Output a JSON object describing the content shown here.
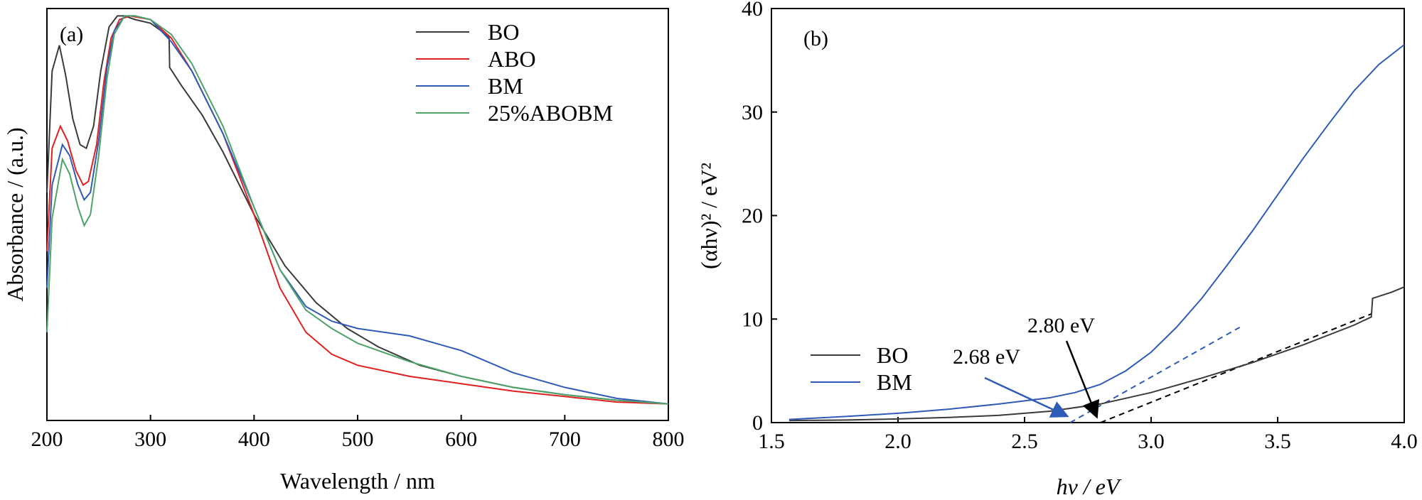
{
  "chart_data": [
    {
      "panel_label": "(a)",
      "type": "line",
      "xlabel": "Wavelength / nm",
      "ylabel": "Absorbance / (a.u.)",
      "xlim": [
        200,
        800
      ],
      "ylim": [
        0,
        1.12
      ],
      "xticks": [
        200,
        300,
        400,
        500,
        600,
        700,
        800
      ],
      "yticks_shown": false,
      "legend_position": "top-right",
      "series": [
        {
          "name": "BO",
          "color": "#3a3a3a",
          "x": [
            200,
            205,
            212,
            218,
            225,
            232,
            238,
            245,
            252,
            260,
            268,
            275,
            285,
            300,
            310,
            318,
            318.5,
            330,
            350,
            370,
            400,
            430,
            460,
            490,
            520,
            560,
            600,
            650,
            700,
            750,
            800
          ],
          "y": [
            0.62,
            0.95,
            1.02,
            0.94,
            0.82,
            0.75,
            0.74,
            0.8,
            0.95,
            1.07,
            1.1,
            1.1,
            1.09,
            1.08,
            1.06,
            1.04,
            0.96,
            0.91,
            0.83,
            0.73,
            0.56,
            0.42,
            0.32,
            0.25,
            0.2,
            0.15,
            0.12,
            0.09,
            0.07,
            0.055,
            0.045
          ]
        },
        {
          "name": "ABO",
          "color": "#e02020",
          "x": [
            200,
            205,
            213,
            220,
            228,
            235,
            240,
            248,
            255,
            262,
            270,
            280,
            300,
            320,
            340,
            370,
            400,
            425,
            450,
            475,
            500,
            550,
            600,
            650,
            700,
            750,
            800
          ],
          "y": [
            0.46,
            0.74,
            0.8,
            0.76,
            0.68,
            0.64,
            0.65,
            0.75,
            0.92,
            1.04,
            1.09,
            1.1,
            1.09,
            1.04,
            0.95,
            0.78,
            0.56,
            0.36,
            0.24,
            0.18,
            0.15,
            0.12,
            0.1,
            0.08,
            0.065,
            0.05,
            0.045
          ]
        },
        {
          "name": "BM",
          "color": "#2f5bb8",
          "x": [
            200,
            205,
            215,
            222,
            230,
            236,
            242,
            250,
            258,
            265,
            275,
            285,
            300,
            320,
            340,
            370,
            400,
            425,
            450,
            475,
            500,
            550,
            600,
            650,
            700,
            750,
            800
          ],
          "y": [
            0.36,
            0.64,
            0.75,
            0.72,
            0.64,
            0.6,
            0.62,
            0.76,
            0.96,
            1.06,
            1.1,
            1.1,
            1.09,
            1.03,
            0.95,
            0.78,
            0.58,
            0.41,
            0.31,
            0.27,
            0.25,
            0.23,
            0.19,
            0.13,
            0.09,
            0.06,
            0.045
          ]
        },
        {
          "name": "25%ABOBM",
          "color": "#4ea36a",
          "x": [
            200,
            205,
            215,
            222,
            230,
            236,
            242,
            250,
            258,
            265,
            275,
            285,
            300,
            320,
            340,
            370,
            400,
            425,
            450,
            475,
            500,
            550,
            600,
            650,
            700,
            750,
            800
          ],
          "y": [
            0.24,
            0.55,
            0.71,
            0.67,
            0.58,
            0.53,
            0.56,
            0.72,
            0.93,
            1.05,
            1.1,
            1.1,
            1.09,
            1.05,
            0.97,
            0.8,
            0.58,
            0.41,
            0.3,
            0.25,
            0.21,
            0.16,
            0.12,
            0.09,
            0.07,
            0.055,
            0.045
          ]
        }
      ]
    },
    {
      "panel_label": "(b)",
      "type": "line",
      "xlabel": "hν / eV",
      "ylabel": "(αhν)² / eV²",
      "xlim": [
        1.5,
        4.0
      ],
      "ylim": [
        0,
        40
      ],
      "xticks": [
        1.5,
        2.0,
        2.5,
        3.0,
        3.5,
        4.0
      ],
      "yticks": [
        0,
        10,
        20,
        30,
        40
      ],
      "legend_position": "bottom-left",
      "series": [
        {
          "name": "BO",
          "color": "#3a3a3a",
          "x": [
            1.57,
            1.8,
            2.0,
            2.2,
            2.4,
            2.6,
            2.8,
            3.0,
            3.2,
            3.4,
            3.6,
            3.8,
            3.87,
            3.875,
            3.95,
            4.0
          ],
          "y": [
            0.2,
            0.25,
            0.35,
            0.5,
            0.7,
            1.1,
            1.8,
            2.9,
            4.3,
            5.8,
            7.5,
            9.4,
            10.2,
            12.0,
            12.6,
            13.1
          ]
        },
        {
          "name": "BM",
          "color": "#2f5bb8",
          "x": [
            1.57,
            1.8,
            2.0,
            2.2,
            2.4,
            2.6,
            2.7,
            2.8,
            2.9,
            3.0,
            3.1,
            3.2,
            3.3,
            3.4,
            3.5,
            3.6,
            3.7,
            3.8,
            3.9,
            4.0
          ],
          "y": [
            0.3,
            0.6,
            0.9,
            1.3,
            1.8,
            2.4,
            2.9,
            3.7,
            5.0,
            6.8,
            9.2,
            12.0,
            15.2,
            18.5,
            22.0,
            25.5,
            28.8,
            32.0,
            34.6,
            36.5
          ]
        }
      ],
      "fit_lines": [
        {
          "name": "BO-tangent",
          "color": "#000000",
          "x": [
            2.8,
            3.87
          ],
          "y": [
            0,
            10.5
          ]
        },
        {
          "name": "BM-tangent",
          "color": "#2f5bb8",
          "x": [
            2.68,
            3.35
          ],
          "y": [
            0,
            9.2
          ]
        }
      ],
      "annotations": [
        {
          "text": "2.80 eV",
          "color": "#000000",
          "point_x": 2.8,
          "point_y": 0
        },
        {
          "text": "2.68 eV",
          "color": "#2f5bb8",
          "point_x": 2.68,
          "point_y": 0
        }
      ]
    }
  ]
}
